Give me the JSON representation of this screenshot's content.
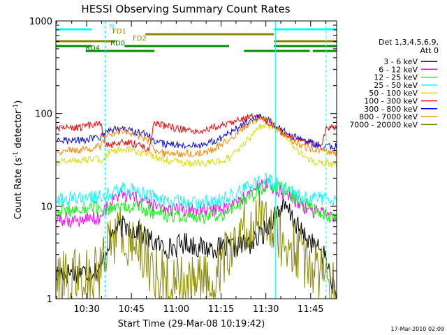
{
  "chart_data": {
    "type": "line",
    "title": "HESSI Observing Summary Count Rates",
    "xlabel": "Start Time (29-Mar-08 10:19:42)",
    "ylabel_main": "Count Rate (s",
    "ylabel_sup1": "-1",
    "ylabel_mid": " detector",
    "ylabel_sup2": "-1",
    "ylabel_end": ")",
    "yscale": "log",
    "ylim": [
      1,
      1000
    ],
    "xlim_minutes": [
      0,
      94
    ],
    "x_ticks": [
      {
        "label": "10:30",
        "minute": 10.3
      },
      {
        "label": "10:45",
        "minute": 25.3
      },
      {
        "label": "11:00",
        "minute": 40.3
      },
      {
        "label": "11:15",
        "minute": 55.3
      },
      {
        "label": "11:30",
        "minute": 70.3
      },
      {
        "label": "11:45",
        "minute": 85.3
      }
    ],
    "y_ticks": [
      {
        "label": "1",
        "value": 1
      },
      {
        "label": "10",
        "value": 10
      },
      {
        "label": "100",
        "value": 100
      },
      {
        "label": "1000",
        "value": 1000
      }
    ],
    "legend_header": [
      "Det 1,3,4,5,6,9,",
      "Att 0"
    ],
    "legend_placement": "right",
    "series": [
      {
        "name": "3 - 6 keV",
        "color": "#000000"
      },
      {
        "name": "6 - 12 keV",
        "color": "#ff00ff"
      },
      {
        "name": "12 - 25 keV",
        "color": "#00ff00"
      },
      {
        "name": "25 - 50 keV",
        "color": "#00ffff"
      },
      {
        "name": "50 - 100 keV",
        "color": "#dddd00"
      },
      {
        "name": "100 - 300 keV",
        "color": "#ff0000"
      },
      {
        "name": "300 - 800 keV",
        "color": "#0000ff"
      },
      {
        "name": "800 - 7000 keV",
        "color": "#ff8800"
      },
      {
        "name": "7000 - 20000 keV",
        "color": "#888800"
      }
    ],
    "series_levels": {
      "3 - 6 keV": [
        1.8,
        2,
        1.8,
        2,
        1.9,
        2,
        1.9,
        2,
        2,
        2,
        3,
        4.5,
        5.5,
        6,
        6,
        5.8,
        5.5,
        5.2,
        4.8,
        4.3,
        4,
        3.8,
        3.6,
        3.5,
        3.6,
        3.8,
        4,
        4,
        3.8,
        3.6,
        3.5,
        3.5,
        3.6,
        3.5,
        3.5,
        3.6,
        3.6,
        3.7,
        3.8,
        3.8,
        4,
        4.5,
        5,
        6,
        7.5,
        9,
        9.5,
        9,
        7.5,
        6,
        5,
        4.5,
        4,
        3.5,
        3.2,
        2.5,
        1.5,
        1
      ],
      "6 - 12 keV": [
        7,
        7,
        7.2,
        7,
        7.1,
        7,
        7.3,
        7.5,
        7.5,
        7.5,
        9,
        11,
        12.5,
        13,
        13,
        12.5,
        12,
        11.5,
        11,
        10.5,
        10,
        9.5,
        9.2,
        9,
        9,
        9,
        9,
        9,
        9,
        9,
        9,
        9,
        9.2,
        9.3,
        9.5,
        10,
        10.5,
        11,
        12,
        13,
        14.5,
        16,
        17,
        17,
        16,
        15,
        14,
        13,
        12,
        11,
        10,
        9.5,
        9,
        8.5,
        8.5,
        7.8,
        7.2,
        7
      ],
      "12 - 25 keV": [
        9,
        9,
        9,
        9,
        9,
        9,
        9,
        9.5,
        9.5,
        9.5,
        9,
        9.5,
        10,
        10,
        10,
        10,
        10,
        9.5,
        9,
        9,
        8.5,
        8.3,
        8,
        8,
        7.8,
        7.6,
        7.5,
        7.5,
        7.5,
        7.5,
        7.5,
        7.8,
        8,
        8,
        8.5,
        9,
        9.5,
        10,
        11,
        12,
        13,
        15,
        16,
        17,
        17,
        16,
        15,
        14,
        13,
        12,
        11,
        10,
        9.5,
        9,
        8.5,
        8,
        7.8,
        7.5
      ],
      "25 - 50 keV": [
        12,
        12,
        12,
        12,
        12,
        12,
        12,
        12.5,
        12.5,
        12.5,
        13,
        14,
        15,
        15.5,
        15.5,
        15,
        14.5,
        14,
        13.5,
        13,
        12.5,
        12,
        11.5,
        11,
        11,
        11,
        11,
        11,
        11,
        11,
        11,
        11,
        11.5,
        12,
        12,
        12.5,
        13,
        14,
        15,
        16,
        17,
        18,
        19,
        19,
        18,
        17,
        16,
        15,
        14,
        13,
        12.5,
        12,
        12,
        12,
        12,
        12,
        12,
        11
      ],
      "50 - 100 keV": [
        30,
        30,
        31,
        31,
        31,
        31,
        31,
        32,
        32,
        32,
        34,
        38,
        40,
        41,
        41,
        40,
        39,
        38,
        37,
        36,
        34,
        33,
        32,
        31,
        30,
        30,
        29,
        29,
        29,
        29,
        29,
        29,
        30,
        30,
        31,
        33,
        36,
        40,
        45,
        52,
        60,
        68,
        73,
        75,
        73,
        68,
        60,
        52,
        45,
        40,
        36,
        33,
        31,
        30,
        30,
        29,
        28,
        28
      ],
      "100 - 300 keV": [
        68,
        68,
        69,
        69,
        70,
        70,
        72,
        74,
        76,
        78,
        45,
        45,
        47,
        49,
        49,
        48,
        47,
        45,
        43,
        42,
        78,
        76,
        74,
        72,
        70,
        68,
        67,
        66,
        66,
        66,
        67,
        68,
        70,
        72,
        75,
        78,
        81,
        85,
        88,
        90,
        92,
        91,
        88,
        82,
        75,
        68,
        62,
        58,
        55,
        53,
        52,
        50,
        48,
        46,
        45,
        72,
        70,
        68
      ],
      "300 - 800 keV": [
        50,
        50,
        51,
        51,
        51,
        51,
        52,
        53,
        54,
        55,
        60,
        65,
        67,
        68,
        67,
        66,
        64,
        62,
        60,
        56,
        50,
        48,
        47,
        46,
        46,
        46,
        46,
        46,
        46,
        46,
        47,
        48,
        50,
        53,
        56,
        60,
        65,
        70,
        76,
        82,
        88,
        91,
        90,
        86,
        80,
        73,
        67,
        62,
        58,
        54,
        52,
        50,
        48,
        46,
        45,
        44,
        44,
        44
      ],
      "800 - 7000 keV": [
        39,
        39,
        40,
        40,
        40,
        40,
        41,
        42,
        43,
        44,
        55,
        60,
        63,
        65,
        64,
        62,
        60,
        57,
        54,
        50,
        40,
        38,
        37,
        37,
        37,
        37,
        37,
        37,
        37,
        37,
        38,
        39,
        41,
        44,
        48,
        52,
        57,
        63,
        70,
        77,
        84,
        88,
        88,
        84,
        77,
        70,
        63,
        57,
        52,
        48,
        45,
        43,
        41,
        40,
        40,
        39,
        38,
        38
      ],
      "7000 - 20000 keV": [
        2,
        1.5,
        2,
        1.4,
        2,
        1.6,
        2,
        1.8,
        2,
        2,
        3.5,
        4,
        4.5,
        5,
        5,
        4.5,
        4,
        3.5,
        3,
        2.5,
        2,
        1.8,
        1.6,
        1.5,
        1.4,
        1.4,
        1.4,
        1.4,
        1.4,
        1.5,
        1.6,
        1.8,
        2,
        2.2,
        2.5,
        3,
        3.5,
        4,
        5,
        6,
        7.5,
        8,
        8,
        7,
        6,
        5,
        4.5,
        4,
        3.5,
        3,
        2.8,
        2.5,
        2.2,
        2,
        1.8,
        1.5,
        1.2,
        1.2
      ]
    },
    "annotations": [
      {
        "label": "N",
        "color": "#00ffff",
        "segments": [
          [
            0,
            12
          ],
          [
            73,
            94
          ]
        ]
      },
      {
        "label": "FD1",
        "color": "#888800",
        "segments": [
          [
            30,
            73
          ]
        ]
      },
      {
        "label": "FD2",
        "color": "#888800",
        "segments": [
          [
            0,
            20
          ],
          [
            73,
            94
          ]
        ]
      },
      {
        "label": "RD0",
        "color": "#008800",
        "segments": [
          [
            0,
            12
          ],
          [
            23,
            58
          ],
          [
            73,
            94
          ]
        ]
      },
      {
        "label": "RD4",
        "color": "#008800",
        "segments": [
          [
            10,
            33
          ],
          [
            63,
            85
          ],
          [
            86,
            94
          ]
        ]
      }
    ],
    "attenuator_lines_minutes": [
      {
        "minute": 0,
        "style": "solid"
      },
      {
        "minute": 16.5,
        "style": "dashed"
      },
      {
        "minute": 73.5,
        "style": "solid"
      },
      {
        "minute": 90.5,
        "style": "dashed"
      }
    ],
    "footer_date": "17-Mar-2010 02:09"
  }
}
